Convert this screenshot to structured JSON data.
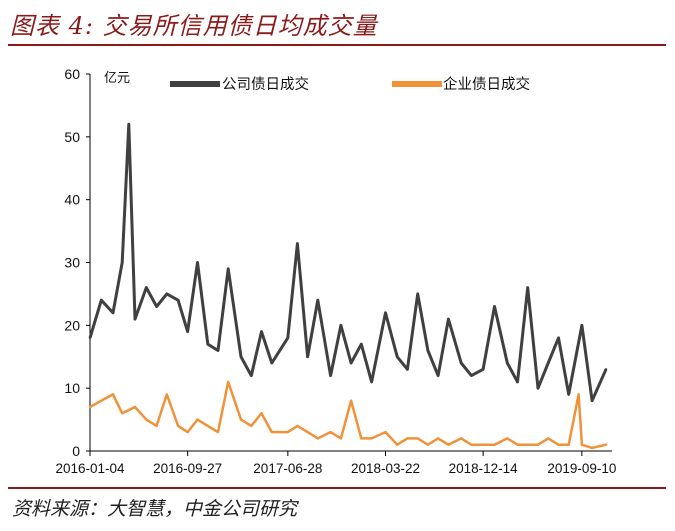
{
  "title": "图表 4: 交易所信用债日均成交量",
  "source": "资料来源：大智慧，中金公司研究",
  "chart_data": {
    "type": "line",
    "ylabel": "亿元",
    "ylim": [
      0,
      60
    ],
    "yticks": [
      "0",
      "10",
      "20",
      "30",
      "40",
      "50",
      "60"
    ],
    "xlabels": [
      "2016-01-04",
      "2016-09-27",
      "2017-06-28",
      "2018-03-22",
      "2018-12-14",
      "2019-09-10"
    ],
    "x_range": [
      "2016-01-04",
      "2019-11-15"
    ],
    "grid": false,
    "legend_position": "top",
    "series": [
      {
        "name": "公司债日成交",
        "color": "#404040",
        "dates": [
          "2016-01-04",
          "2016-02-04",
          "2016-03-07",
          "2016-04-01",
          "2016-04-19",
          "2016-05-06",
          "2016-06-06",
          "2016-07-04",
          "2016-08-01",
          "2016-09-01",
          "2016-09-27",
          "2016-10-24",
          "2016-11-21",
          "2016-12-19",
          "2017-01-16",
          "2017-02-20",
          "2017-03-20",
          "2017-04-17",
          "2017-05-15",
          "2017-06-28",
          "2017-07-24",
          "2017-08-21",
          "2017-09-18",
          "2017-10-23",
          "2017-11-20",
          "2017-12-18",
          "2018-01-15",
          "2018-02-12",
          "2018-03-22",
          "2018-04-23",
          "2018-05-21",
          "2018-06-18",
          "2018-07-16",
          "2018-08-13",
          "2018-09-10",
          "2018-10-15",
          "2018-11-12",
          "2018-12-14",
          "2019-01-14",
          "2019-02-18",
          "2019-03-18",
          "2019-04-15",
          "2019-05-13",
          "2019-06-10",
          "2019-07-08",
          "2019-08-05",
          "2019-09-10",
          "2019-10-08",
          "2019-11-15"
        ],
        "values": [
          18,
          24,
          22,
          30,
          52,
          21,
          26,
          23,
          25,
          24,
          19,
          30,
          17,
          16,
          29,
          15,
          12,
          19,
          14,
          18,
          33,
          15,
          24,
          12,
          20,
          14,
          17,
          11,
          22,
          15,
          13,
          25,
          16,
          12,
          21,
          14,
          12,
          13,
          23,
          14,
          11,
          26,
          10,
          14,
          18,
          9,
          20,
          8,
          13
        ]
      },
      {
        "name": "企业债日成交",
        "color": "#f0923a",
        "dates": [
          "2016-01-04",
          "2016-02-04",
          "2016-03-07",
          "2016-04-01",
          "2016-05-06",
          "2016-06-06",
          "2016-07-04",
          "2016-08-01",
          "2016-09-01",
          "2016-09-27",
          "2016-10-24",
          "2016-11-21",
          "2016-12-19",
          "2017-01-16",
          "2017-02-20",
          "2017-03-20",
          "2017-04-17",
          "2017-05-15",
          "2017-06-28",
          "2017-07-24",
          "2017-08-21",
          "2017-09-18",
          "2017-10-23",
          "2017-11-20",
          "2017-12-18",
          "2018-01-15",
          "2018-02-12",
          "2018-03-22",
          "2018-04-23",
          "2018-05-21",
          "2018-06-18",
          "2018-07-16",
          "2018-08-13",
          "2018-09-10",
          "2018-10-15",
          "2018-11-12",
          "2018-12-14",
          "2019-01-14",
          "2019-02-18",
          "2019-03-18",
          "2019-04-15",
          "2019-05-13",
          "2019-06-10",
          "2019-07-08",
          "2019-08-05",
          "2019-09-01",
          "2019-09-10",
          "2019-10-08",
          "2019-11-15"
        ],
        "values": [
          7,
          8,
          9,
          6,
          7,
          5,
          4,
          9,
          4,
          3,
          5,
          4,
          3,
          11,
          5,
          4,
          6,
          3,
          3,
          4,
          3,
          2,
          3,
          2,
          8,
          2,
          2,
          3,
          1,
          2,
          2,
          1,
          2,
          1,
          2,
          1,
          1,
          1,
          2,
          1,
          1,
          1,
          2,
          1,
          1,
          9,
          1,
          0.5,
          1
        ]
      }
    ]
  }
}
